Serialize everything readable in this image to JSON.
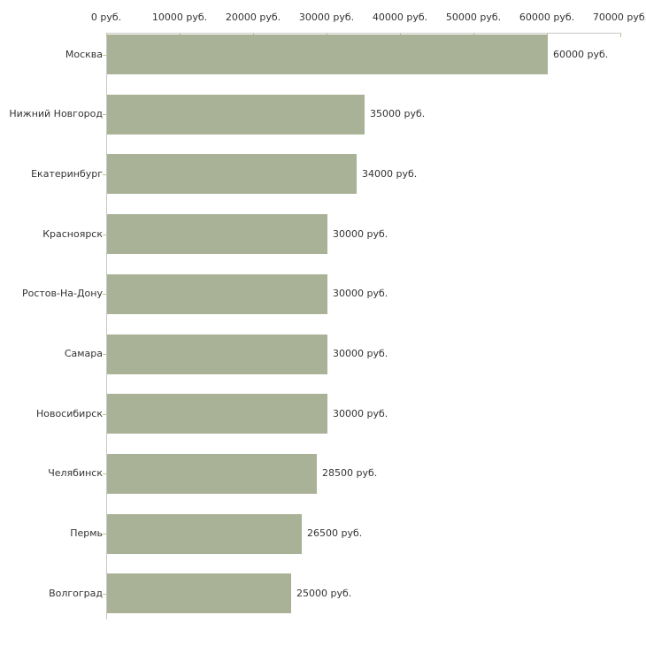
{
  "chart_data": {
    "type": "bar",
    "orientation": "horizontal",
    "title": "",
    "xlabel": "",
    "ylabel": "",
    "grid": false,
    "legend": false,
    "categories": [
      "Москва",
      "Нижний Новгород",
      "Екатеринбург",
      "Красноярск",
      "Ростов-На-Дону",
      "Самара",
      "Новосибирск",
      "Челябинск",
      "Пермь",
      "Волгоград"
    ],
    "values": [
      60000,
      35000,
      34000,
      30000,
      30000,
      30000,
      30000,
      28500,
      26500,
      25000
    ],
    "value_labels": [
      "60000 руб.",
      "35000 руб.",
      "34000 руб.",
      "30000 руб.",
      "30000 руб.",
      "30000 руб.",
      "30000 руб.",
      "28500 руб.",
      "26500 руб.",
      "25000 руб."
    ],
    "x_axis": {
      "position": "top",
      "range": [
        0,
        70000
      ],
      "ticks": [
        0,
        10000,
        20000,
        30000,
        40000,
        50000,
        60000,
        70000
      ],
      "tick_labels": [
        "0 руб.",
        "10000 руб.",
        "20000 руб.",
        "30000 руб.",
        "40000 руб.",
        "50000 руб.",
        "60000 руб.",
        "70000 руб."
      ],
      "unit": "руб."
    },
    "colors": {
      "bar": "#a9b296",
      "axis_line": "#c8c8c8",
      "tick_mark": "#c2c294",
      "text": "#333333",
      "background": "#ffffff"
    }
  }
}
